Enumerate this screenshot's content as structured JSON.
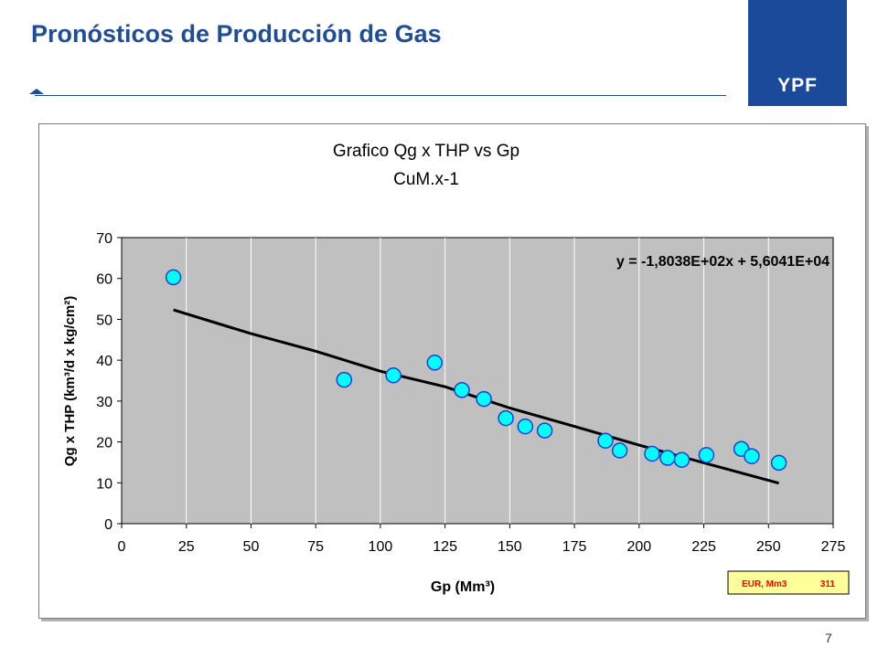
{
  "slide": {
    "title": "Pronósticos de Producción de Gas",
    "logo_text": "YPF",
    "page_number": "7"
  },
  "colors": {
    "title_blue": "#1f4e96",
    "logo_blue": "#1b4a9a",
    "plot_bg": "#c0c0c0",
    "marker_fill": "#00ffff",
    "marker_stroke": "#1a3ed6",
    "trend_line": "#000000",
    "eur_text": "#ff0000",
    "eur_bg": "#ffff99"
  },
  "chart_data": {
    "type": "scatter",
    "title": "Grafico Qg x THP vs Gp",
    "subtitle": "CuM.x-1",
    "xlabel": "Gp (Mm³)",
    "ylabel": "Qg x THP (km³/d x kg/cm²)",
    "xlim": [
      0,
      275
    ],
    "ylim": [
      0,
      70
    ],
    "xticks": [
      0,
      25,
      50,
      75,
      100,
      125,
      150,
      175,
      200,
      225,
      250,
      275
    ],
    "yticks": [
      0,
      10,
      20,
      30,
      40,
      50,
      60,
      70
    ],
    "grid": "vertical",
    "points": [
      {
        "x": 20,
        "y": 60.3
      },
      {
        "x": 86,
        "y": 35.2
      },
      {
        "x": 105,
        "y": 36.3
      },
      {
        "x": 121,
        "y": 39.4
      },
      {
        "x": 131.5,
        "y": 32.7
      },
      {
        "x": 140,
        "y": 30.5
      },
      {
        "x": 148.5,
        "y": 25.8
      },
      {
        "x": 156,
        "y": 23.8
      },
      {
        "x": 163.5,
        "y": 22.8
      },
      {
        "x": 187,
        "y": 20.3
      },
      {
        "x": 192.5,
        "y": 17.9
      },
      {
        "x": 205,
        "y": 17.1
      },
      {
        "x": 211,
        "y": 16.1
      },
      {
        "x": 216.5,
        "y": 15.6
      },
      {
        "x": 226,
        "y": 16.8
      },
      {
        "x": 239.5,
        "y": 18.3
      },
      {
        "x": 243.5,
        "y": 16.5
      },
      {
        "x": 254,
        "y": 14.9
      }
    ],
    "trendline": {
      "equation": "y = -1,8038E+02x + 5,6041E+04",
      "points": [
        {
          "x": 20,
          "y": 52.3
        },
        {
          "x": 50,
          "y": 46.5
        },
        {
          "x": 75,
          "y": 42.2
        },
        {
          "x": 100,
          "y": 37.3
        },
        {
          "x": 125,
          "y": 33.5
        },
        {
          "x": 150,
          "y": 28.3
        },
        {
          "x": 175,
          "y": 23.8
        },
        {
          "x": 200,
          "y": 19.2
        },
        {
          "x": 225,
          "y": 14.9
        },
        {
          "x": 254,
          "y": 9.9
        }
      ]
    },
    "eur_box": {
      "label": "EUR, Mm3",
      "value": "311"
    }
  }
}
